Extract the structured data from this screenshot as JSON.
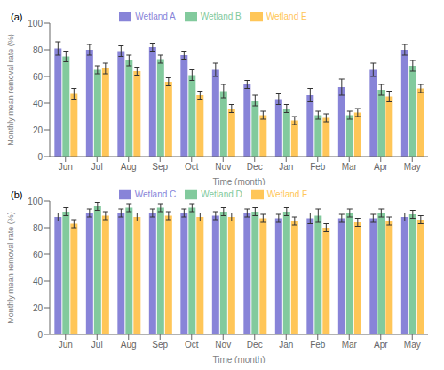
{
  "chart_data": [
    {
      "type": "bar",
      "annotation": "(a)",
      "xlabel": "Time (month)",
      "ylabel": "Monthly mean removal rate (%)",
      "categories": [
        "Jun",
        "Jul",
        "Aug",
        "Sep",
        "Oct",
        "Nov",
        "Dec",
        "Jan",
        "Feb",
        "Mar",
        "Apr",
        "May"
      ],
      "series": [
        {
          "name": "Wetland A",
          "color": "#8884d8",
          "values": [
            81,
            80,
            79,
            82,
            76,
            65,
            54,
            43,
            46,
            52,
            65,
            80
          ],
          "errors": [
            5,
            4,
            4,
            3,
            3,
            5,
            3,
            4,
            5,
            6,
            5,
            4
          ]
        },
        {
          "name": "Wetland B",
          "color": "#82ca9d",
          "values": [
            75,
            65,
            72,
            73,
            61,
            49,
            42,
            36,
            31,
            31,
            50,
            68
          ],
          "errors": [
            4,
            3,
            4,
            3,
            4,
            5,
            4,
            3,
            3,
            3,
            4,
            4
          ]
        },
        {
          "name": "Wetland E",
          "color": "#ffc658",
          "values": [
            47,
            66,
            64,
            56,
            46,
            36,
            31,
            27,
            29,
            33,
            45,
            51
          ],
          "errors": [
            4,
            4,
            3,
            3,
            3,
            3,
            3,
            3,
            3,
            3,
            4,
            3
          ]
        }
      ],
      "ylim": [
        0,
        100
      ],
      "yticks": [
        0,
        20,
        40,
        60,
        80,
        100
      ],
      "legend": "upper center",
      "grid": false
    },
    {
      "type": "bar",
      "annotation": "(b)",
      "xlabel": "Time (month)",
      "ylabel": "Monthly mean removal rate (%)",
      "categories": [
        "Jun",
        "Jul",
        "Aug",
        "Sep",
        "Oct",
        "Nov",
        "Dec",
        "Jan",
        "Feb",
        "Mar",
        "Apr",
        "May"
      ],
      "series": [
        {
          "name": "Wetland C",
          "color": "#8884d8",
          "values": [
            88,
            91,
            91,
            91,
            91,
            89,
            91,
            87,
            87,
            87,
            87,
            88
          ],
          "errors": [
            3,
            3,
            3,
            3,
            3,
            3,
            3,
            3,
            4,
            3,
            3,
            3
          ]
        },
        {
          "name": "Wetland D",
          "color": "#82ca9d",
          "values": [
            92,
            96,
            95,
            95,
            95,
            92,
            92,
            92,
            89,
            91,
            91,
            90
          ],
          "errors": [
            3,
            3,
            3,
            3,
            3,
            3,
            3,
            3,
            5,
            3,
            3,
            3
          ]
        },
        {
          "name": "Wetland F",
          "color": "#ffc658",
          "values": [
            83,
            89,
            88,
            89,
            88,
            88,
            87,
            85,
            80,
            84,
            85,
            86
          ],
          "errors": [
            3,
            3,
            3,
            3,
            3,
            3,
            3,
            3,
            3,
            3,
            3,
            3
          ]
        }
      ],
      "ylim": [
        0,
        100
      ],
      "yticks": [
        0,
        20,
        40,
        60,
        80,
        100
      ],
      "legend": "upper center",
      "grid": false
    }
  ]
}
